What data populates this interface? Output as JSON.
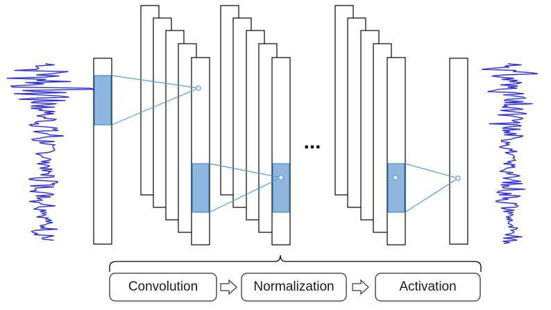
{
  "colors": {
    "stroke": "#000000",
    "signal": "#2a2ad6",
    "link": "#4d9fd6",
    "highlight_fill": "#8fb6df",
    "highlight_stroke": "#3b8bc7",
    "ghost_fill": "#d7e6f4"
  },
  "diagram": {
    "ellipsis": "...",
    "stages": [
      {
        "label": "Convolution"
      },
      {
        "label": "Normalization"
      },
      {
        "label": "Activation"
      }
    ],
    "arrow_icon": "right-outline-arrow-icon"
  }
}
